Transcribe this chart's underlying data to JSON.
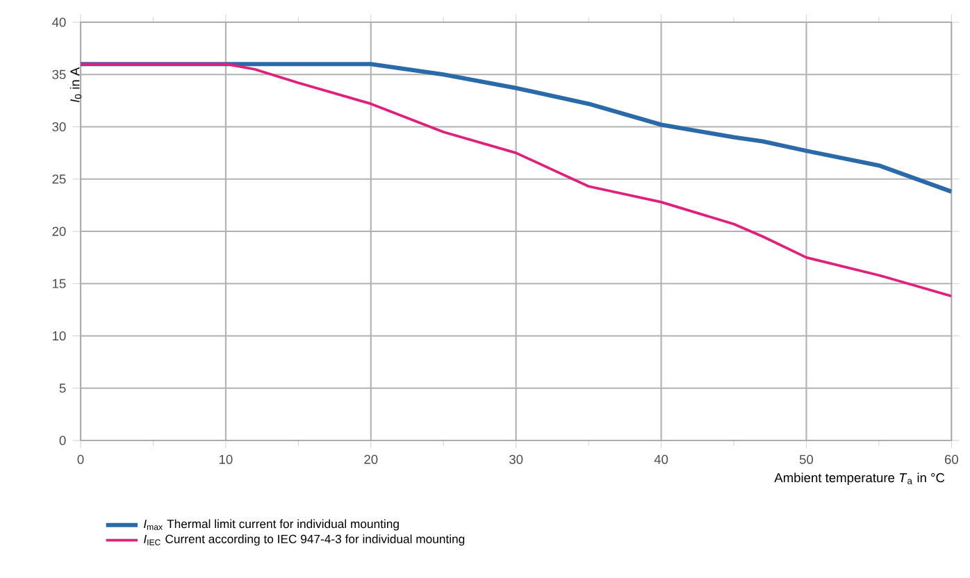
{
  "chart_data": {
    "type": "line",
    "xlabel": "Ambient temperature *T*$_{a}$ in °C",
    "ylabel": "*I*$_{0}$ in A",
    "x": [
      0,
      5,
      10,
      12,
      15,
      20,
      25,
      30,
      35,
      40,
      45,
      47,
      50,
      55,
      60
    ],
    "series": [
      {
        "name": "*I*$_{max}$ Thermal limit current for individual mounting",
        "color": "#2a6aa8",
        "values": [
          36,
          36,
          36,
          36,
          36,
          36,
          35,
          33.7,
          32.2,
          30.2,
          29,
          28.6,
          27.7,
          26.3,
          23.8
        ]
      },
      {
        "name": "*I*$_{IEC}$ Current according to IEC 947-4-3 for individual mounting",
        "color": "#e0207a",
        "values": [
          36,
          36,
          36,
          35.5,
          34.2,
          32.2,
          29.5,
          27.5,
          24.3,
          22.8,
          20.7,
          19.5,
          17.5,
          15.8,
          13.8
        ]
      }
    ],
    "xlim": [
      0,
      60
    ],
    "ylim": [
      0,
      40
    ],
    "xticks": [
      0,
      10,
      20,
      30,
      40,
      50,
      60
    ],
    "yticks": [
      0,
      5,
      10,
      15,
      20,
      25,
      30,
      35,
      40
    ],
    "grid": true,
    "legend": "bottom",
    "marker": "none",
    "line_style": "solid"
  }
}
